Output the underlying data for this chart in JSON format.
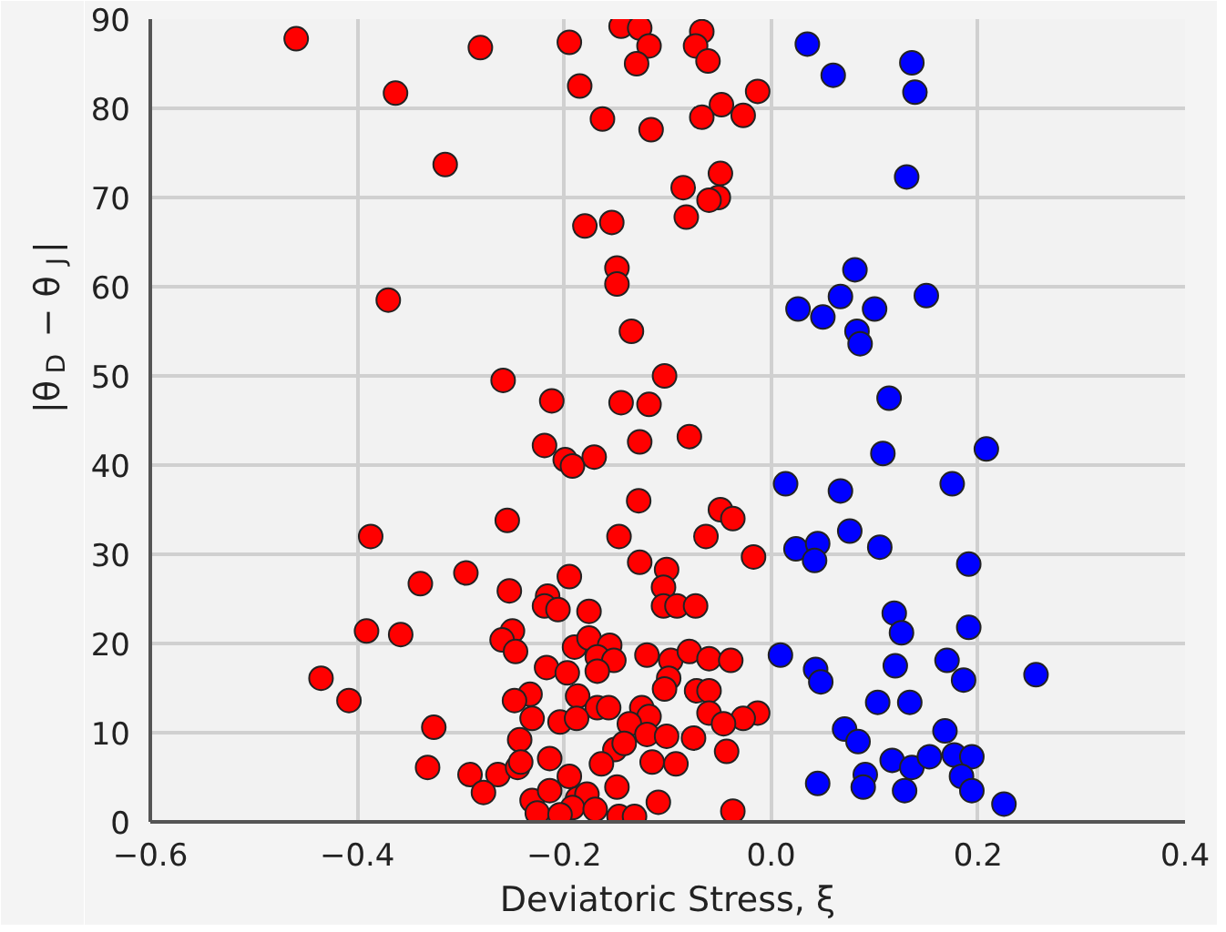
{
  "chart_data": {
    "type": "scatter",
    "xlabel": "Deviatoric Stress, ξ",
    "ylabel": "|θ$_{D}$ − θ$_{J}$|",
    "xlim": [
      -0.6,
      0.4
    ],
    "ylim": [
      0,
      90
    ],
    "xticks": [
      {
        "value": -0.6,
        "label": "−0.6"
      },
      {
        "value": -0.4,
        "label": "−0.4"
      },
      {
        "value": -0.2,
        "label": "−0.2"
      },
      {
        "value": 0.0,
        "label": "0.0"
      },
      {
        "value": 0.2,
        "label": "0.2"
      },
      {
        "value": 0.4,
        "label": "0.4"
      }
    ],
    "yticks": [
      0,
      10,
      20,
      30,
      40,
      50,
      60,
      70,
      80,
      90
    ],
    "grid": true,
    "marker": "circle",
    "series": [
      {
        "color": "#ff0000",
        "x": [
          -0.459,
          -0.281,
          -0.195,
          -0.145,
          -0.127,
          -0.118,
          -0.13,
          -0.067,
          -0.073,
          -0.061,
          -0.185,
          -0.013,
          -0.048,
          -0.163,
          -0.067,
          -0.027,
          -0.116,
          -0.363,
          -0.315,
          -0.049,
          -0.085,
          -0.051,
          -0.06,
          -0.18,
          -0.154,
          -0.082,
          -0.149,
          -0.149,
          -0.37,
          -0.135,
          -0.259,
          -0.103,
          -0.212,
          -0.145,
          -0.118,
          -0.219,
          -0.199,
          -0.192,
          -0.171,
          -0.127,
          -0.079,
          -0.128,
          -0.049,
          -0.037,
          -0.255,
          -0.147,
          -0.387,
          -0.063,
          -0.017,
          -0.127,
          -0.295,
          -0.339,
          -0.101,
          -0.253,
          -0.195,
          -0.104,
          -0.216,
          -0.219,
          -0.206,
          -0.176,
          -0.104,
          -0.091,
          -0.073,
          -0.391,
          -0.358,
          -0.25,
          -0.26,
          -0.247,
          -0.19,
          -0.176,
          -0.156,
          -0.168,
          -0.152,
          -0.12,
          -0.097,
          -0.079,
          -0.06,
          -0.039,
          -0.435,
          -0.408,
          -0.217,
          -0.197,
          -0.168,
          -0.099,
          -0.103,
          -0.072,
          -0.06,
          -0.233,
          -0.248,
          -0.187,
          -0.168,
          -0.157,
          -0.125,
          -0.06,
          -0.118,
          -0.013,
          -0.027,
          -0.326,
          -0.231,
          -0.204,
          -0.188,
          -0.137,
          -0.046,
          -0.12,
          -0.101,
          -0.075,
          -0.243,
          -0.151,
          -0.142,
          -0.043,
          -0.115,
          -0.092,
          -0.332,
          -0.291,
          -0.264,
          -0.245,
          -0.242,
          -0.214,
          -0.195,
          -0.164,
          -0.278,
          -0.231,
          -0.214,
          -0.187,
          -0.178,
          -0.149,
          -0.192,
          -0.17,
          -0.109,
          -0.226,
          -0.204,
          -0.147,
          -0.132,
          -0.037
        ],
        "values": [
          87.8,
          86.8,
          87.4,
          89.2,
          89,
          87,
          85,
          88.6,
          87,
          85.3,
          82.5,
          81.9,
          80.4,
          78.8,
          79,
          79.2,
          77.6,
          81.7,
          73.7,
          72.7,
          71.1,
          70,
          69.7,
          66.8,
          67.2,
          67.8,
          62.1,
          60.3,
          58.5,
          55,
          49.5,
          50,
          47.2,
          47,
          46.8,
          42.2,
          40.6,
          39.9,
          40.9,
          42.6,
          43.2,
          36,
          35,
          34,
          33.8,
          32,
          32,
          32,
          29.7,
          29.1,
          27.9,
          26.7,
          28.3,
          25.9,
          27.5,
          26.3,
          25.3,
          24.2,
          23.8,
          23.6,
          24.2,
          24.2,
          24.2,
          21.4,
          21,
          21.4,
          20.4,
          19.1,
          19.6,
          20.6,
          19.8,
          18.5,
          18.1,
          18.7,
          18.1,
          19.1,
          18.3,
          18.1,
          16.1,
          13.6,
          17.3,
          16.7,
          16.9,
          16.1,
          14.9,
          14.7,
          14.7,
          14.3,
          13.6,
          14.1,
          12.8,
          12.8,
          12.8,
          12.2,
          11.8,
          12.2,
          11.6,
          10.6,
          11.6,
          11.2,
          11.6,
          11,
          11,
          9.8,
          9.6,
          9.4,
          9.2,
          8.1,
          8.8,
          7.9,
          6.7,
          6.5,
          6.1,
          5.3,
          5.3,
          6.1,
          6.7,
          7.1,
          5.1,
          6.5,
          3.3,
          2.4,
          3.5,
          2.6,
          3.1,
          3.9,
          1.6,
          1.4,
          2.2,
          1,
          0.8,
          0.6,
          0.6,
          1.2
        ]
      },
      {
        "color": "#0000ff",
        "x": [
          0.035,
          0.06,
          0.136,
          0.139,
          0.131,
          0.081,
          0.067,
          0.026,
          0.05,
          0.1,
          0.15,
          0.083,
          0.086,
          0.114,
          0.108,
          0.208,
          0.014,
          0.067,
          0.175,
          0.076,
          0.024,
          0.045,
          0.042,
          0.105,
          0.191,
          0.119,
          0.126,
          0.191,
          0.009,
          0.043,
          0.048,
          0.12,
          0.17,
          0.186,
          0.256,
          0.103,
          0.134,
          0.071,
          0.084,
          0.168,
          0.117,
          0.136,
          0.153,
          0.177,
          0.194,
          0.091,
          0.089,
          0.184,
          0.045,
          0.129,
          0.194,
          0.225
        ],
        "values": [
          87.2,
          83.7,
          85.1,
          81.8,
          72.3,
          61.9,
          58.9,
          57.5,
          56.6,
          57.5,
          59,
          55,
          53.6,
          47.5,
          41.3,
          41.8,
          37.9,
          37.1,
          37.9,
          32.6,
          30.6,
          31.2,
          29.3,
          30.8,
          28.9,
          23.4,
          21.2,
          21.8,
          18.7,
          17.1,
          15.7,
          17.5,
          18.1,
          15.9,
          16.5,
          13.4,
          13.4,
          10.4,
          9,
          10.2,
          6.9,
          6.1,
          7.3,
          7.5,
          7.3,
          5.3,
          3.9,
          5.1,
          4.3,
          3.5,
          3.5,
          2
        ]
      }
    ]
  }
}
